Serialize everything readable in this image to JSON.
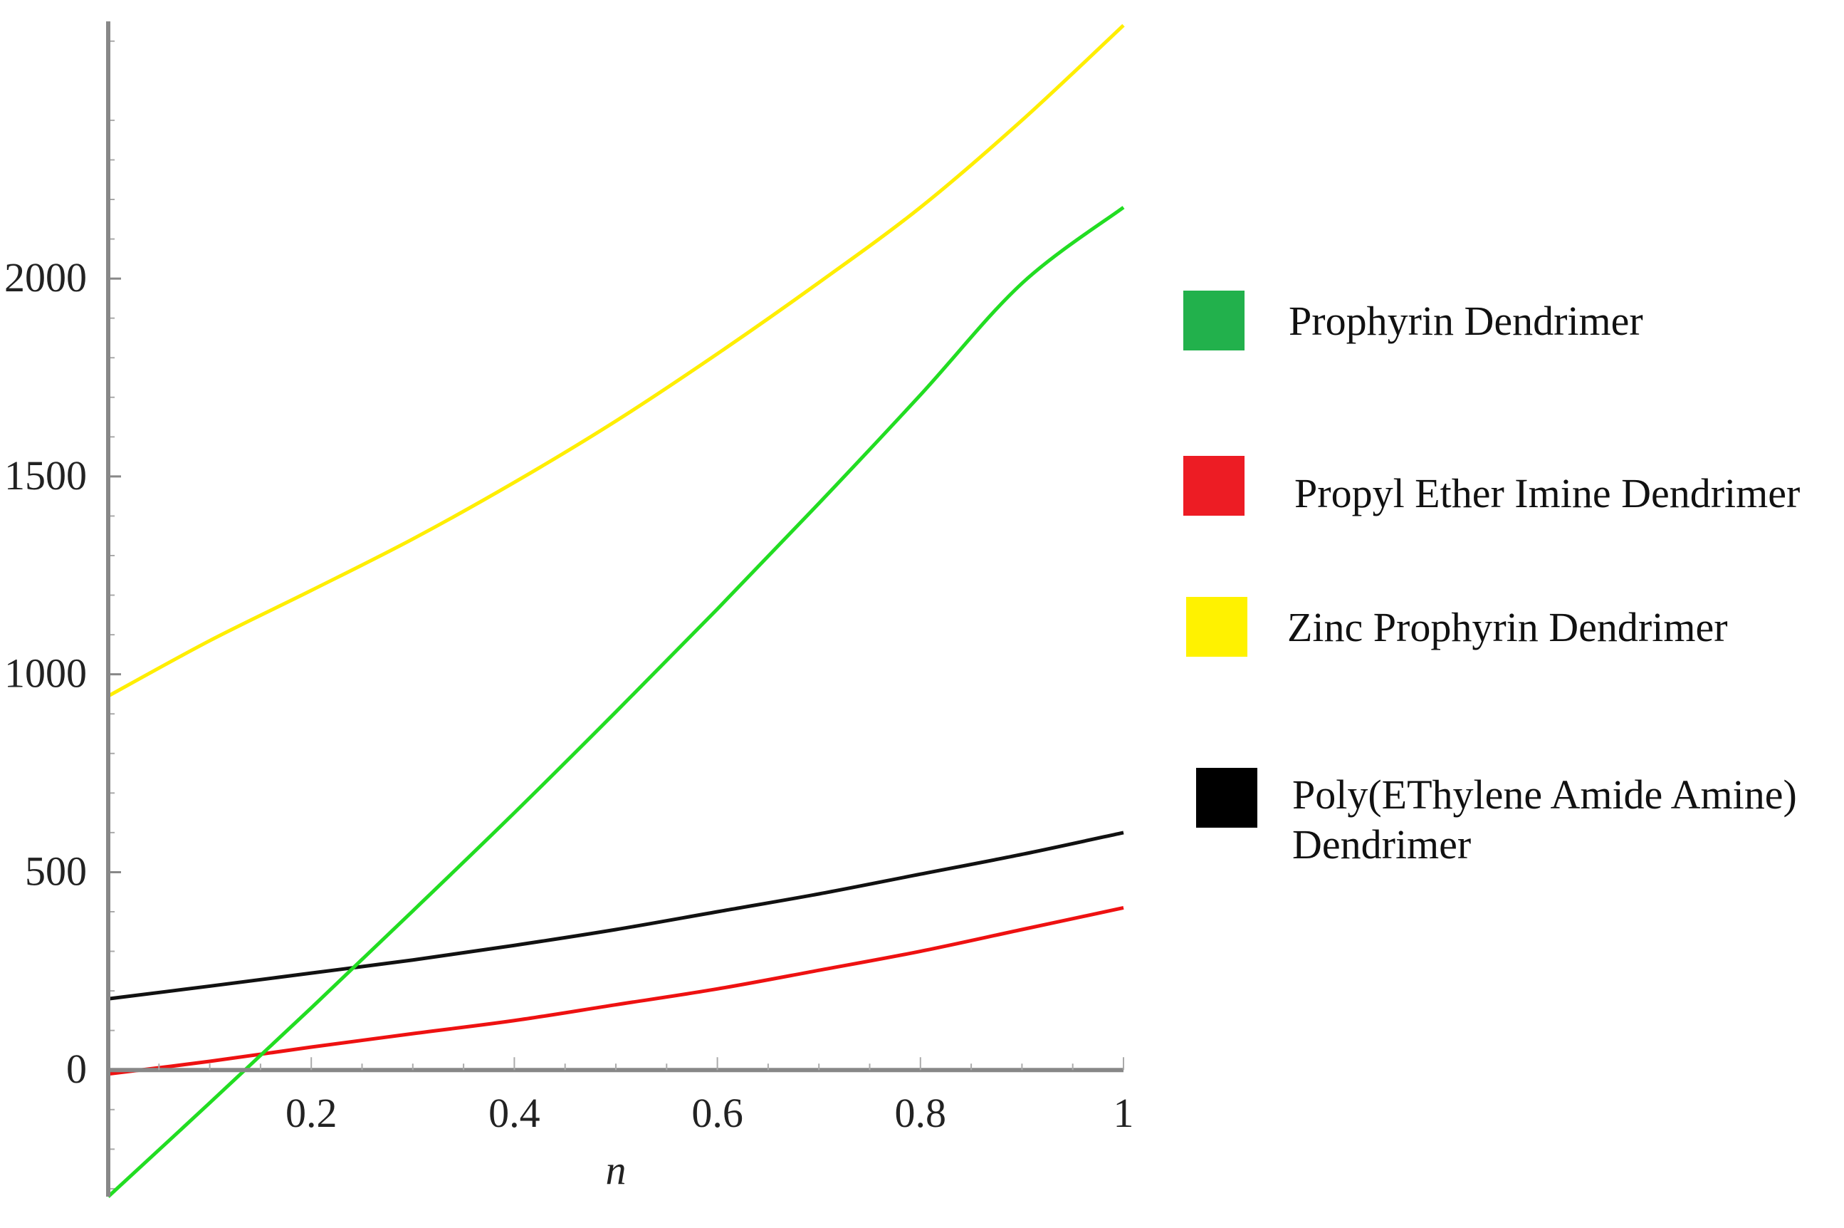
{
  "chart_data": {
    "type": "line",
    "title": "",
    "xlabel": "n",
    "ylabel": "",
    "xlim": [
      0,
      1
    ],
    "ylim": [
      -320,
      2650
    ],
    "x_ticks": [
      {
        "value": 0.2,
        "label": "0.2"
      },
      {
        "value": 0.4,
        "label": "0.4"
      },
      {
        "value": 0.6,
        "label": "0.6"
      },
      {
        "value": 0.8,
        "label": "0.8"
      },
      {
        "value": 1,
        "label": "1"
      }
    ],
    "y_ticks": [
      {
        "value": 0,
        "label": "0"
      },
      {
        "value": 500,
        "label": "500"
      },
      {
        "value": 1000,
        "label": "1000"
      },
      {
        "value": 1500,
        "label": "1500"
      },
      {
        "value": 2000,
        "label": "2000"
      }
    ],
    "grid": false,
    "legend_position": "right",
    "x": [
      0,
      0.1,
      0.2,
      0.3,
      0.4,
      0.5,
      0.6,
      0.7,
      0.8,
      0.9,
      1.0
    ],
    "series": [
      {
        "name": "Prophyrin Dendrimer",
        "color": "#22dd22",
        "legend_color": "#22b14c",
        "values": [
          -320,
          -83,
          157,
          402,
          650,
          905,
          1165,
          1432,
          1706,
          1988,
          2180
        ]
      },
      {
        "name": "Propyl Ether Imine Dendrimer",
        "color": "#ee1111",
        "legend_color": "#ed1c24",
        "values": [
          -10,
          22,
          58,
          92,
          125,
          165,
          205,
          252,
          300,
          355,
          410
        ]
      },
      {
        "name": "Zinc Prophyrin Dendrimer",
        "color": "#ffee00",
        "legend_color": "#fff200",
        "values": [
          945,
          1085,
          1212,
          1342,
          1485,
          1640,
          1810,
          1990,
          2180,
          2400,
          2640
        ]
      },
      {
        "name": "Poly(EThylene Amide Amine)\nDendrimer",
        "color": "#111111",
        "legend_color": "#000000",
        "values": [
          180,
          212,
          245,
          278,
          315,
          355,
          400,
          445,
          495,
          545,
          600
        ]
      }
    ]
  }
}
